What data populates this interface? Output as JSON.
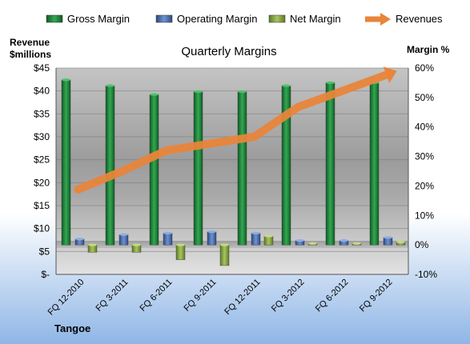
{
  "chart_data": {
    "type": "bar",
    "title": "Quarterly Margins",
    "company": "Tangoe",
    "y_left_label": [
      "Revenue",
      "$millions"
    ],
    "y_right_label": "Margin %",
    "categories": [
      "FQ 12-2010",
      "FQ 3-2011",
      "FQ 6-2011",
      "FQ 9-2011",
      "FQ 12-2011",
      "FQ 3-2012",
      "FQ 6-2012",
      "FQ 9-2012"
    ],
    "y_left": {
      "min": 0,
      "max": 45,
      "step": 5,
      "tick_labels": [
        "$-",
        "$5",
        "$10",
        "$15",
        "$20",
        "$25",
        "$30",
        "$35",
        "$40",
        "$45"
      ]
    },
    "y_right": {
      "min": -10,
      "max": 60,
      "step": 10,
      "tick_labels": [
        "-10%",
        "0%",
        "10%",
        "20%",
        "30%",
        "40%",
        "50%",
        "60%"
      ]
    },
    "series": [
      {
        "name": "Gross Margin",
        "axis": "right",
        "kind": "bar",
        "color": "#1e8a3a",
        "values": [
          56,
          54,
          51,
          52,
          52,
          54,
          55,
          55
        ]
      },
      {
        "name": "Operating Margin",
        "axis": "right",
        "kind": "bar",
        "color": "#4f74b8",
        "values": [
          2,
          3.5,
          4,
          4.5,
          4,
          1.5,
          1.5,
          2.5
        ]
      },
      {
        "name": "Net Margin",
        "axis": "right",
        "kind": "bar",
        "color": "#8faa4a",
        "values": [
          -2.5,
          -2.5,
          -5,
          -7,
          3,
          0.5,
          0.5,
          1
        ]
      },
      {
        "name": "Revenues",
        "axis": "left",
        "kind": "line",
        "color": "#e8853a",
        "values": [
          18.5,
          22.5,
          27,
          28.5,
          30,
          36.5,
          40,
          43.5
        ]
      }
    ],
    "legend_position": "top",
    "grid": true
  }
}
